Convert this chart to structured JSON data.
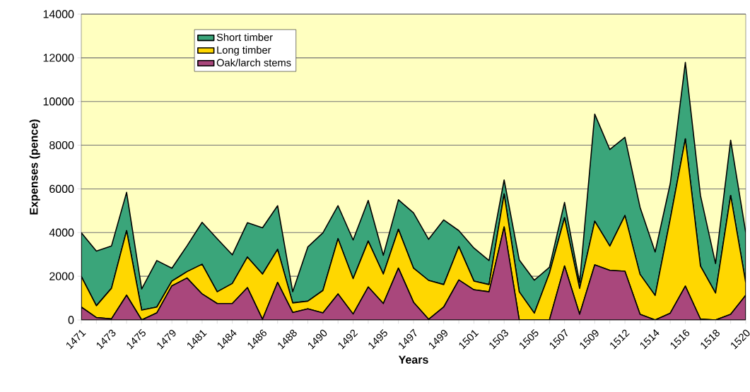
{
  "chart_data": {
    "type": "area",
    "stacked": true,
    "xlabel": "Years",
    "ylabel": "Expenses (pence)",
    "categories": [
      "1471",
      null,
      "1473",
      null,
      "1475",
      null,
      "1479",
      null,
      "1481",
      null,
      "1484",
      null,
      "1486",
      null,
      "1488",
      null,
      "1490",
      null,
      "1492",
      null,
      "1495",
      null,
      "1497",
      null,
      "1499",
      null,
      "1501",
      null,
      "1503",
      null,
      "1505",
      null,
      "1507",
      null,
      "1509",
      null,
      "1512",
      null,
      "1514",
      null,
      "1516",
      null,
      "1518",
      null,
      "1520"
    ],
    "series": [
      {
        "name": "Oak/larch stems",
        "color": "#a9477c",
        "values": [
          590,
          110,
          50,
          1130,
          0,
          320,
          1560,
          1920,
          1190,
          750,
          750,
          1480,
          30,
          1720,
          340,
          510,
          320,
          1190,
          270,
          1510,
          750,
          2370,
          810,
          30,
          590,
          1830,
          1380,
          1290,
          4260,
          0,
          0,
          0,
          2470,
          260,
          2520,
          2270,
          2230,
          260,
          0,
          310,
          1550,
          40,
          0,
          260,
          1130
        ]
      },
      {
        "name": "Long timber",
        "color": "#ffd700",
        "values": [
          1400,
          540,
          1400,
          2960,
          450,
          270,
          220,
          290,
          1360,
          540,
          920,
          1400,
          2070,
          1510,
          440,
          350,
          1030,
          2530,
          1620,
          2100,
          1350,
          1780,
          1560,
          1780,
          1030,
          1530,
          400,
          330,
          1510,
          1290,
          310,
          2140,
          2210,
          1180,
          2000,
          1110,
          2550,
          1830,
          1120,
          4310,
          6740,
          2430,
          1230,
          5440,
          570
        ]
      },
      {
        "name": "Short timber",
        "color": "#3aa57a",
        "values": [
          2000,
          2500,
          1940,
          1750,
          970,
          2130,
          590,
          1180,
          1920,
          2430,
          1310,
          1570,
          2120,
          2000,
          510,
          2480,
          2640,
          1510,
          1770,
          1860,
          860,
          1350,
          2530,
          1880,
          2960,
          730,
          1510,
          1100,
          640,
          1460,
          1510,
          270,
          700,
          270,
          4900,
          4420,
          3580,
          3070,
          1990,
          1620,
          3500,
          3230,
          1350,
          2530,
          2300
        ]
      }
    ],
    "ylim": [
      0,
      14000
    ],
    "yticks": [
      0,
      2000,
      4000,
      6000,
      8000,
      10000,
      12000,
      14000
    ],
    "grid": "y",
    "legend": "top left"
  }
}
